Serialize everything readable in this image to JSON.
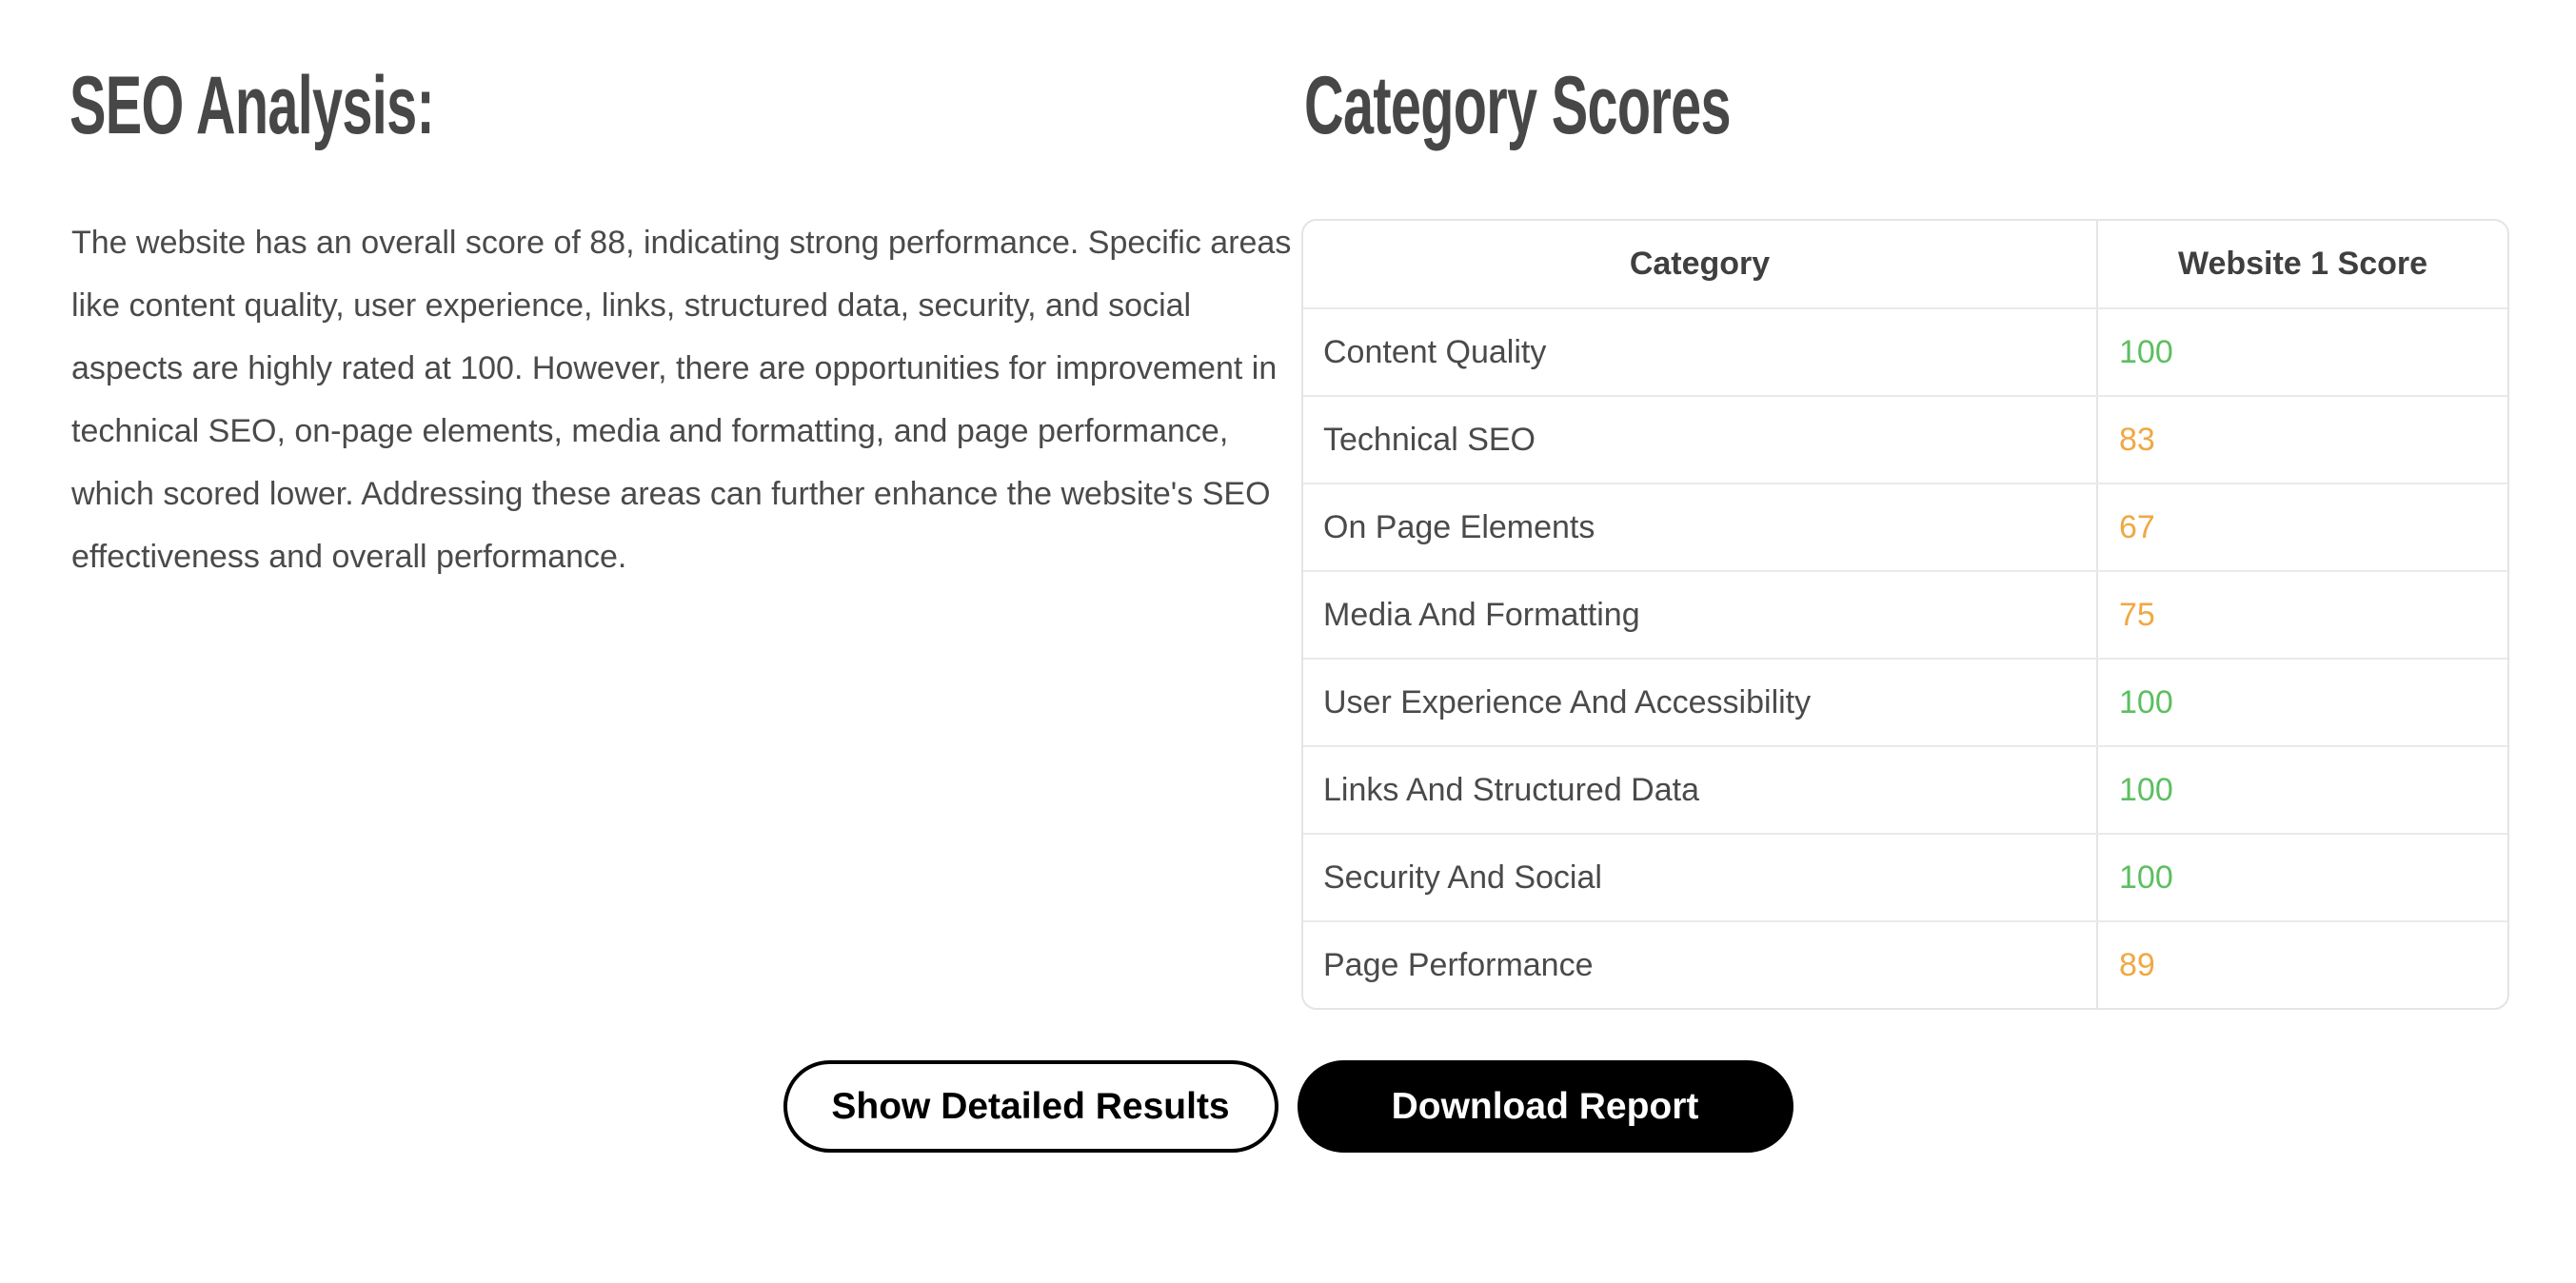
{
  "left_panel": {
    "title": "SEO Analysis:",
    "summary": "The website has an overall score of 88, indicating strong performance. Specific areas like content quality, user experience, links, structured data, security, and social aspects are highly rated at 100. However, there are opportunities for improvement in technical SEO, on-page elements, media and formatting, and page performance, which scored lower. Addressing these areas can further enhance the website's SEO effectiveness and overall performance."
  },
  "right_panel": {
    "title": "Category Scores",
    "table": {
      "headers": {
        "category": "Category",
        "score": "Website 1 Score"
      },
      "rows": [
        {
          "category": "Content Quality",
          "score": "100",
          "status": "good"
        },
        {
          "category": "Technical SEO",
          "score": "83",
          "status": "warn"
        },
        {
          "category": "On Page Elements",
          "score": "67",
          "status": "warn"
        },
        {
          "category": "Media And Formatting",
          "score": "75",
          "status": "warn"
        },
        {
          "category": "User Experience And Accessibility",
          "score": "100",
          "status": "good"
        },
        {
          "category": "Links And Structured Data",
          "score": "100",
          "status": "good"
        },
        {
          "category": "Security And Social",
          "score": "100",
          "status": "good"
        },
        {
          "category": "Page Performance",
          "score": "89",
          "status": "warn"
        }
      ]
    }
  },
  "actions": {
    "show_details_label": "Show Detailed Results",
    "download_label": "Download Report"
  },
  "palette": {
    "good_score": "#5cbf60",
    "warn_score": "#f0a843",
    "heading_text": "#474747",
    "body_text": "#4a4a4a",
    "table_border": "#e4e4e4",
    "button_black": "#000000"
  }
}
